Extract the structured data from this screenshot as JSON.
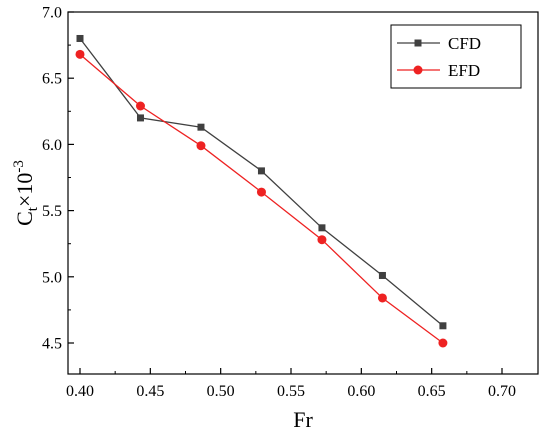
{
  "chart_data": {
    "type": "line",
    "xlabel": "Fr",
    "ylabel": {
      "base": "C",
      "sub": "t",
      "mid": "×10",
      "sup": "-3"
    },
    "xlim": [
      0.37,
      0.7
    ],
    "ylim": [
      4.5,
      7.0
    ],
    "x_ticks": [
      0.4,
      0.45,
      0.5,
      0.55,
      0.6,
      0.65,
      0.7
    ],
    "x_tick_labels": [
      "0.40",
      "0.45",
      "0.50",
      "0.55",
      "0.60",
      "0.65",
      "0.70"
    ],
    "y_ticks": [
      4.5,
      5.0,
      5.5,
      6.0,
      6.5,
      7.0
    ],
    "y_tick_labels": [
      "4.5",
      "5.0",
      "5.5",
      "6.0",
      "6.5",
      "7.0"
    ],
    "grid": false,
    "legend_position": "top-right",
    "series": [
      {
        "name": "CFD",
        "color": "#404040",
        "marker": "square",
        "x": [
          0.4,
          0.443,
          0.486,
          0.529,
          0.572,
          0.615,
          0.658
        ],
        "y": [
          6.8,
          6.2,
          6.13,
          5.8,
          5.37,
          5.01,
          4.63
        ]
      },
      {
        "name": "EFD",
        "color": "#ee2222",
        "marker": "circle",
        "x": [
          0.4,
          0.443,
          0.486,
          0.529,
          0.572,
          0.615,
          0.658
        ],
        "y": [
          6.68,
          6.29,
          5.99,
          5.64,
          5.28,
          4.84,
          4.5
        ]
      }
    ]
  }
}
